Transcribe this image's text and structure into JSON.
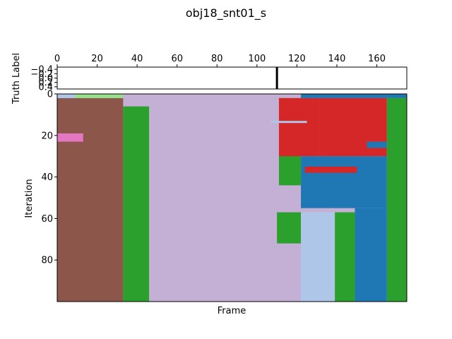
{
  "chart_data": {
    "type": "heatmap",
    "title": "obj18_snt01_s",
    "xlabel": "Frame",
    "top_panel": {
      "ylabel": "Truth Label",
      "xlim": [
        0,
        175
      ],
      "ylim": [
        -0.5,
        0.5
      ],
      "xticks": [
        0,
        20,
        40,
        60,
        80,
        100,
        120,
        140,
        160
      ],
      "yticks": [
        -0.4,
        -0.2,
        0.0,
        0.2,
        0.4
      ],
      "ytick_labels": [
        "−0.4",
        "−0.2",
        "0.0",
        "0.2",
        "0.4"
      ],
      "marker_frame": 110,
      "marker_color": "#000000"
    },
    "main_panel": {
      "ylabel": "Iteration",
      "xlim": [
        0,
        175
      ],
      "ylim": [
        100,
        0
      ],
      "yticks": [
        0,
        20,
        40,
        60,
        80
      ],
      "colors": {
        "brown": "#8c564b",
        "green": "#2ca02c",
        "lavender": "#c5b0d5",
        "red": "#d62728",
        "blue": "#1f77b4",
        "lightblue": "#aec7e8",
        "lightgreen": "#98df8a",
        "pink": "#e377c2"
      },
      "regions": [
        {
          "frames": [
            0,
            175
          ],
          "iterations": [
            0,
            100
          ],
          "color": "lavender"
        },
        {
          "frames": [
            0,
            33
          ],
          "iterations": [
            2,
            100
          ],
          "color": "brown"
        },
        {
          "frames": [
            0,
            9
          ],
          "iterations": [
            0,
            2
          ],
          "color": "lightblue"
        },
        {
          "frames": [
            9,
            33
          ],
          "iterations": [
            0,
            2
          ],
          "color": "lightgreen"
        },
        {
          "frames": [
            0,
            13
          ],
          "iterations": [
            19,
            23
          ],
          "color": "pink"
        },
        {
          "frames": [
            33,
            46
          ],
          "iterations": [
            6,
            100
          ],
          "color": "green"
        },
        {
          "frames": [
            111,
            122
          ],
          "iterations": [
            2,
            44
          ],
          "color": "green"
        },
        {
          "frames": [
            122,
            131
          ],
          "iterations": [
            0,
            2
          ],
          "color": "lavender"
        },
        {
          "frames": [
            111,
            131
          ],
          "iterations": [
            2,
            30
          ],
          "color": "red"
        },
        {
          "frames": [
            131,
            165
          ],
          "iterations": [
            2,
            30
          ],
          "color": "red"
        },
        {
          "frames": [
            122,
            175
          ],
          "iterations": [
            0,
            2
          ],
          "color": "blue"
        },
        {
          "frames": [
            122,
            165
          ],
          "iterations": [
            30,
            55
          ],
          "color": "blue"
        },
        {
          "frames": [
            124,
            150
          ],
          "iterations": [
            35,
            38
          ],
          "color": "red"
        },
        {
          "frames": [
            155,
            165
          ],
          "iterations": [
            23,
            26
          ],
          "color": "blue"
        },
        {
          "frames": [
            165,
            175
          ],
          "iterations": [
            2,
            100
          ],
          "color": "green"
        },
        {
          "frames": [
            110,
            122
          ],
          "iterations": [
            57,
            72
          ],
          "color": "green"
        },
        {
          "frames": [
            122,
            139
          ],
          "iterations": [
            57,
            100
          ],
          "color": "lightblue"
        },
        {
          "frames": [
            139,
            149
          ],
          "iterations": [
            57,
            100
          ],
          "color": "green"
        },
        {
          "frames": [
            149,
            165
          ],
          "iterations": [
            55,
            100
          ],
          "color": "blue"
        },
        {
          "frames": [
            107,
            125
          ],
          "iterations": [
            13,
            14
          ],
          "color": "lightblue"
        }
      ]
    }
  }
}
